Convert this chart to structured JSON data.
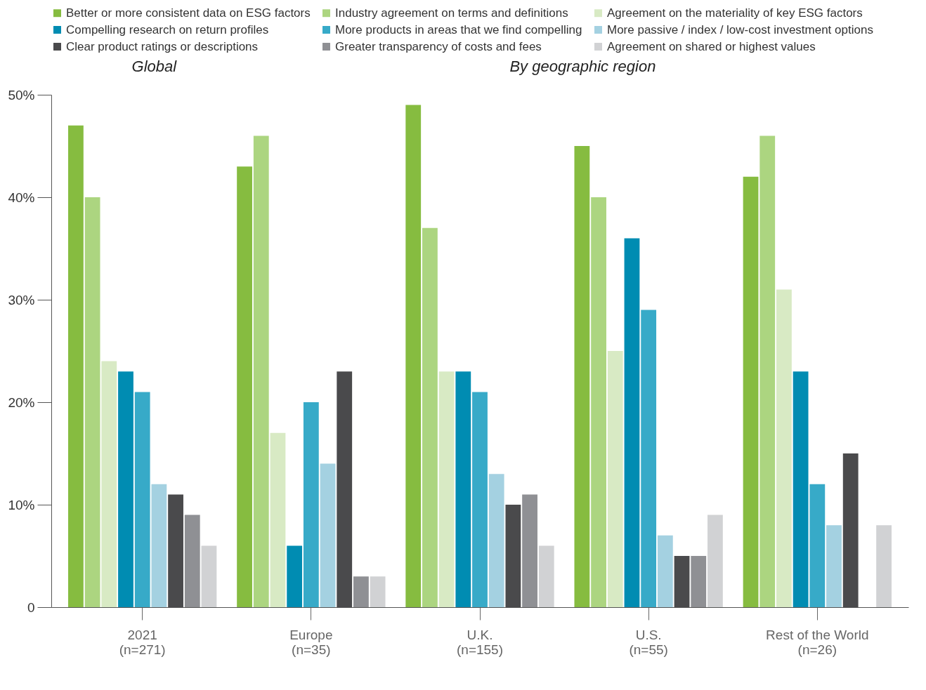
{
  "chart_data": {
    "type": "bar",
    "categories": [
      "2021\n(n=271)",
      "Europe\n(n=35)",
      "U.K.\n(n=155)",
      "U.S.\n(n=55)",
      "Rest of the World\n(n=26)"
    ],
    "series": [
      {
        "name": "Better or more consistent data on ESG factors",
        "color": "#86bc40",
        "values": [
          47,
          43,
          49,
          45,
          42
        ]
      },
      {
        "name": "Industry agreement on terms and definitions",
        "color": "#acd580",
        "values": [
          40,
          46,
          37,
          40,
          46
        ]
      },
      {
        "name": "Agreement on the materiality of key ESG factors",
        "color": "#d8eac4",
        "values": [
          24,
          17,
          23,
          25,
          31
        ]
      },
      {
        "name": "Compelling research on return profiles",
        "color": "#008cb2",
        "values": [
          23,
          6,
          23,
          36,
          23
        ]
      },
      {
        "name": "More products in areas that we find compelling",
        "color": "#37aac8",
        "values": [
          21,
          20,
          21,
          29,
          12
        ]
      },
      {
        "name": "More passive / index / low-cost investment options",
        "color": "#a4d1e1",
        "values": [
          12,
          14,
          13,
          7,
          8
        ]
      },
      {
        "name": "Clear product ratings or descriptions",
        "color": "#4a4a4c",
        "values": [
          11,
          23,
          10,
          5,
          15
        ]
      },
      {
        "name": "Greater transparency of costs and fees",
        "color": "#8f9094",
        "values": [
          9,
          3,
          11,
          5,
          0
        ]
      },
      {
        "name": "Agreement on shared or highest values",
        "color": "#d1d2d4",
        "values": [
          6,
          3,
          6,
          9,
          8
        ]
      }
    ],
    "ylim": [
      0,
      50
    ],
    "yticks": [
      0,
      {
        "value": 10,
        "label": "10%"
      },
      {
        "value": 20,
        "label": "20%"
      },
      {
        "value": 30,
        "label": "30%"
      },
      {
        "value": 40,
        "label": "40%"
      },
      {
        "value": 50,
        "label": "50%"
      }
    ],
    "annotations": [
      "Global",
      "By geographic region"
    ],
    "grid": false,
    "legend": "top"
  }
}
